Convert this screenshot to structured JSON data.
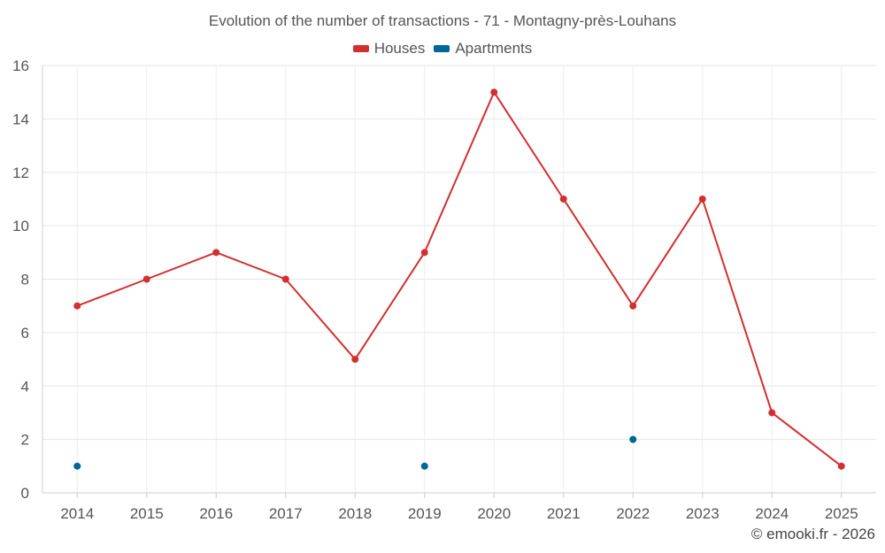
{
  "chart_data": {
    "type": "line",
    "title": "Evolution of the number of transactions - 71 - Montagny-près-Louhans",
    "xlabel": "",
    "ylabel": "",
    "ylim": [
      0,
      16
    ],
    "yticks": [
      "0",
      "2",
      "4",
      "6",
      "8",
      "10",
      "12",
      "14",
      "16"
    ],
    "categories": [
      "2014",
      "2015",
      "2016",
      "2017",
      "2018",
      "2019",
      "2020",
      "2021",
      "2022",
      "2023",
      "2024",
      "2025"
    ],
    "grid": true,
    "legend_position": "top-center",
    "series": [
      {
        "name": "Houses",
        "color": "#d32f2f",
        "style": "line-with-markers",
        "values": [
          7,
          8,
          9,
          8,
          5,
          9,
          15,
          11,
          7,
          11,
          3,
          1
        ]
      },
      {
        "name": "Apartments",
        "color": "#006699",
        "style": "markers-only",
        "values": [
          1,
          null,
          null,
          null,
          null,
          1,
          null,
          null,
          2,
          null,
          null,
          null
        ]
      }
    ]
  },
  "footer": {
    "credit": "© emooki.fr - 2026"
  }
}
